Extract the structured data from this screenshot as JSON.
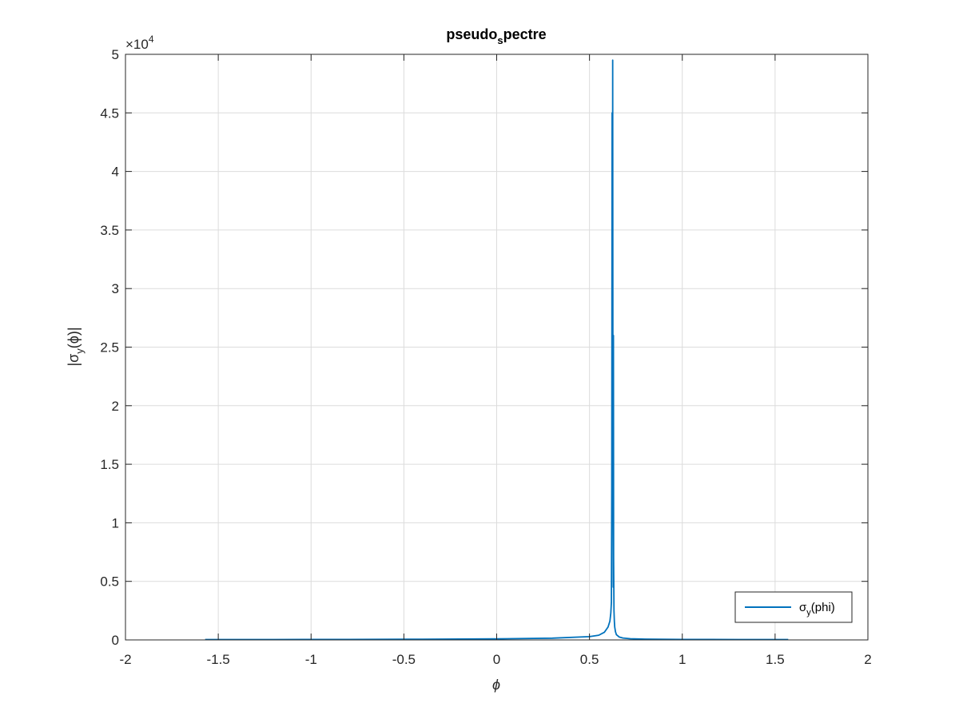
{
  "chart_data": {
    "type": "line",
    "title": "pseudo_spectre",
    "title_parts": {
      "main": "pseudo",
      "sub": "s",
      "rest": "pectre"
    },
    "xlabel": "ϕ",
    "ylabel": {
      "left": "|σ",
      "sub": "y",
      "right": "(ϕ)|"
    },
    "xlim": [
      -2,
      2
    ],
    "ylim": [
      0,
      50000
    ],
    "xticks": [
      -2,
      -1.5,
      -1,
      -0.5,
      0,
      0.5,
      1,
      1.5,
      2
    ],
    "xtick_labels": [
      "-2",
      "-1.5",
      "-1",
      "-0.5",
      "0",
      "0.5",
      "1",
      "1.5",
      "2"
    ],
    "yticks": [
      0,
      5000,
      10000,
      15000,
      20000,
      25000,
      30000,
      35000,
      40000,
      45000,
      50000
    ],
    "ytick_labels": [
      "0",
      "0.5",
      "1",
      "1.5",
      "2",
      "2.5",
      "3",
      "3.5",
      "4",
      "4.5",
      "5"
    ],
    "y_exponent_label": {
      "prefix": "×10",
      "power": "4"
    },
    "grid": true,
    "legend_position": "bottom-right",
    "line_color": "#0072BD",
    "series": [
      {
        "name": "σ_y(phi)",
        "name_parts": {
          "main": "σ",
          "sub": "y",
          "rest": "(phi)"
        },
        "x": [
          -1.5708,
          -1.2,
          -0.8,
          -0.4,
          0.0,
          0.3,
          0.5,
          0.55,
          0.58,
          0.6,
          0.61,
          0.615,
          0.618,
          0.62,
          0.622,
          0.624,
          0.625,
          0.626,
          0.627,
          0.628,
          0.629,
          0.63,
          0.632,
          0.634,
          0.636,
          0.64,
          0.645,
          0.66,
          0.68,
          0.72,
          0.8,
          1.0,
          1.3,
          1.5708
        ],
        "y": [
          30,
          35,
          45,
          60,
          90,
          150,
          280,
          400,
          650,
          1100,
          1600,
          2300,
          3200,
          13000,
          45000,
          20000,
          49500,
          26000,
          12000,
          4500,
          26000,
          7000,
          2500,
          1600,
          1100,
          700,
          450,
          250,
          160,
          100,
          70,
          45,
          35,
          30
        ]
      }
    ]
  }
}
